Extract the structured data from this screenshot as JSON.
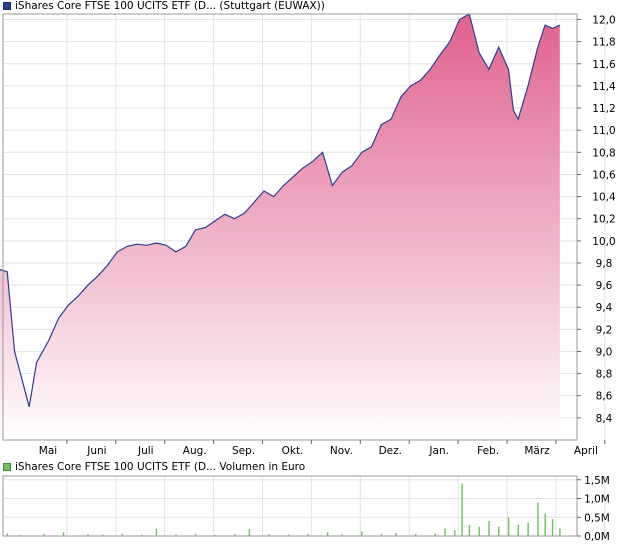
{
  "chart_data": [
    {
      "type": "area",
      "legend": "iShares Core FTSE 100 UCITS ETF (D...  (Stuttgart (EUWAX))",
      "x_labels": [
        "Mai",
        "Juni",
        "Juli",
        "Aug.",
        "Sep.",
        "Okt.",
        "Nov.",
        "Dez.",
        "Jan.",
        "Feb.",
        "März",
        "April"
      ],
      "y_ticks": [
        "8,4",
        "8,6",
        "8,8",
        "9,0",
        "9,2",
        "9,4",
        "9,6",
        "9,8",
        "10,0",
        "10,2",
        "10,4",
        "10,6",
        "10,8",
        "11,0",
        "11,2",
        "11,4",
        "11,6",
        "11,8",
        "12,0"
      ],
      "ylim": [
        8.2,
        12.05
      ],
      "grid": true,
      "colors": {
        "line": "#2a3f8f",
        "fill_top": "#e06090",
        "fill_bottom": "#ffffff"
      },
      "series": [
        {
          "points": [
            [
              0.0,
              9.74
            ],
            [
              0.15,
              9.72
            ],
            [
              0.3,
              9.0
            ],
            [
              0.45,
              8.75
            ],
            [
              0.6,
              8.5
            ],
            [
              0.75,
              8.9
            ],
            [
              1.0,
              9.1
            ],
            [
              1.2,
              9.3
            ],
            [
              1.4,
              9.42
            ],
            [
              1.6,
              9.5
            ],
            [
              1.8,
              9.6
            ],
            [
              2.0,
              9.68
            ],
            [
              2.2,
              9.78
            ],
            [
              2.4,
              9.9
            ],
            [
              2.6,
              9.95
            ],
            [
              2.8,
              9.97
            ],
            [
              3.0,
              9.96
            ],
            [
              3.2,
              9.98
            ],
            [
              3.4,
              9.96
            ],
            [
              3.6,
              9.9
            ],
            [
              3.8,
              9.95
            ],
            [
              4.0,
              10.1
            ],
            [
              4.2,
              10.12
            ],
            [
              4.4,
              10.18
            ],
            [
              4.6,
              10.24
            ],
            [
              4.8,
              10.2
            ],
            [
              5.0,
              10.25
            ],
            [
              5.2,
              10.35
            ],
            [
              5.4,
              10.45
            ],
            [
              5.6,
              10.4
            ],
            [
              5.8,
              10.5
            ],
            [
              6.0,
              10.58
            ],
            [
              6.2,
              10.66
            ],
            [
              6.4,
              10.72
            ],
            [
              6.6,
              10.8
            ],
            [
              6.8,
              10.5
            ],
            [
              7.0,
              10.62
            ],
            [
              7.2,
              10.68
            ],
            [
              7.4,
              10.8
            ],
            [
              7.6,
              10.85
            ],
            [
              7.8,
              11.05
            ],
            [
              8.0,
              11.1
            ],
            [
              8.2,
              11.3
            ],
            [
              8.4,
              11.4
            ],
            [
              8.6,
              11.45
            ],
            [
              8.8,
              11.55
            ],
            [
              9.0,
              11.68
            ],
            [
              9.2,
              11.8
            ],
            [
              9.4,
              12.0
            ],
            [
              9.6,
              12.05
            ],
            [
              9.8,
              11.7
            ],
            [
              10.0,
              11.55
            ],
            [
              10.2,
              11.75
            ],
            [
              10.4,
              11.55
            ],
            [
              10.5,
              11.18
            ],
            [
              10.6,
              11.1
            ],
            [
              10.8,
              11.4
            ],
            [
              11.0,
              11.75
            ],
            [
              11.15,
              11.95
            ],
            [
              11.3,
              11.92
            ],
            [
              11.45,
              11.95
            ]
          ]
        }
      ]
    },
    {
      "type": "bar",
      "legend": "iShares Core FTSE 100 UCITS ETF (D...  Volumen in Euro",
      "y_ticks": [
        "0,0M",
        "0,5M",
        "1,0M",
        "1,5M"
      ],
      "ylim": [
        0,
        1.6
      ],
      "grid": true,
      "colors": {
        "bar": "#6fbf5f"
      },
      "bars": [
        [
          0.15,
          0.07
        ],
        [
          0.4,
          0.03
        ],
        [
          0.9,
          0.05
        ],
        [
          1.3,
          0.1
        ],
        [
          1.8,
          0.05
        ],
        [
          2.1,
          0.04
        ],
        [
          2.5,
          0.06
        ],
        [
          2.9,
          0.03
        ],
        [
          3.2,
          0.2
        ],
        [
          3.6,
          0.04
        ],
        [
          4.0,
          0.06
        ],
        [
          4.4,
          0.03
        ],
        [
          4.8,
          0.05
        ],
        [
          5.1,
          0.18
        ],
        [
          5.5,
          0.05
        ],
        [
          5.9,
          0.04
        ],
        [
          6.3,
          0.06
        ],
        [
          6.7,
          0.1
        ],
        [
          7.0,
          0.04
        ],
        [
          7.4,
          0.12
        ],
        [
          7.8,
          0.05
        ],
        [
          8.1,
          0.08
        ],
        [
          8.5,
          0.06
        ],
        [
          8.9,
          0.07
        ],
        [
          9.1,
          0.2
        ],
        [
          9.3,
          0.15
        ],
        [
          9.45,
          1.4
        ],
        [
          9.6,
          0.3
        ],
        [
          9.8,
          0.25
        ],
        [
          10.0,
          0.4
        ],
        [
          10.2,
          0.25
        ],
        [
          10.4,
          0.5
        ],
        [
          10.6,
          0.3
        ],
        [
          10.8,
          0.35
        ],
        [
          11.0,
          0.9
        ],
        [
          11.15,
          0.6
        ],
        [
          11.3,
          0.45
        ],
        [
          11.45,
          0.2
        ]
      ]
    }
  ]
}
